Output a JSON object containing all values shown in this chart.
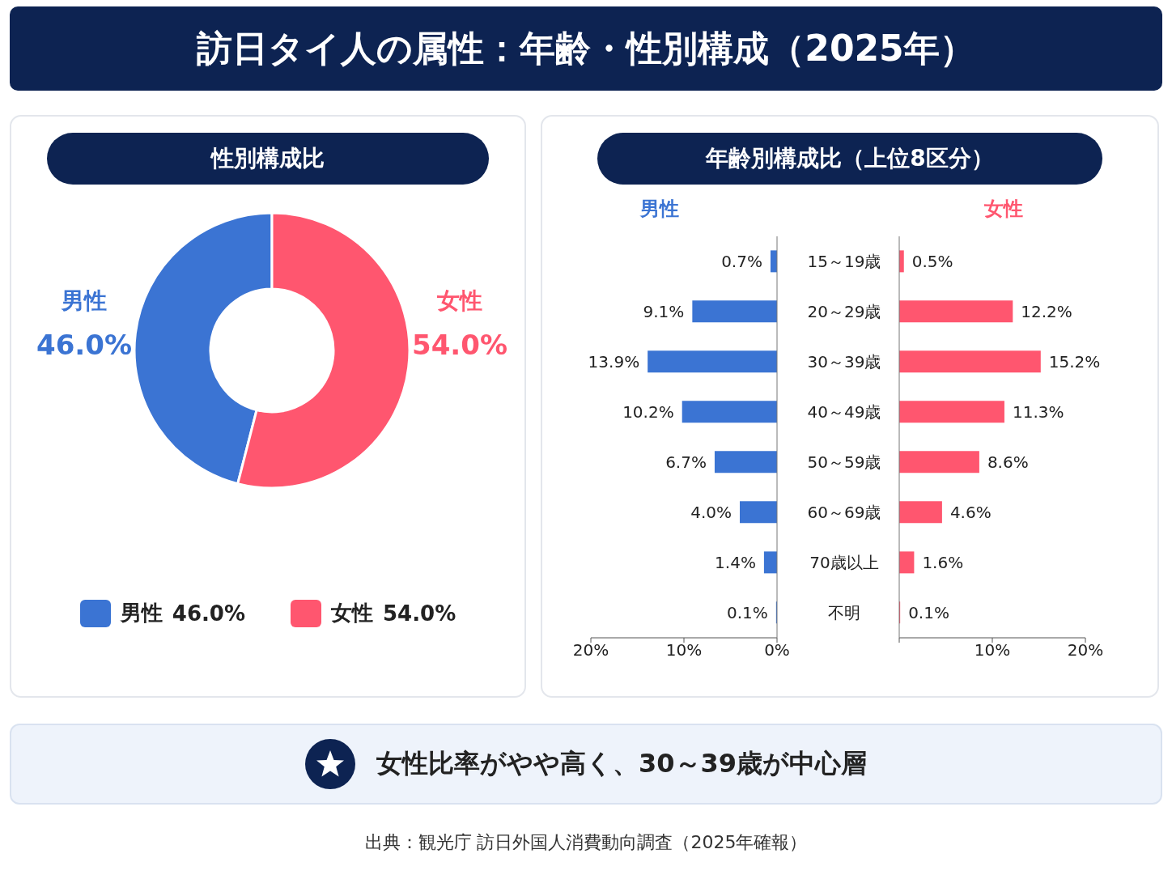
{
  "chart_data": [
    {
      "type": "donut",
      "title": "訪日タイ人の属性：年齢・性別構成（2025年）",
      "subtitle": "性別構成比",
      "categories": [
        "男性",
        "女性"
      ],
      "values": [
        46.0,
        54.0
      ],
      "value_labels": [
        "46.0%",
        "54.0%"
      ],
      "colors": [
        "#3b74d3",
        "#ff566f"
      ],
      "legend": "bottom"
    },
    {
      "type": "bar",
      "orientation": "horizontal",
      "title": "年齢別構成比（上位8区分）",
      "categories": [
        "15～19歳",
        "20～29歳",
        "30～39歳",
        "40～49歳",
        "50～59歳",
        "60～69歳",
        "70歳以上",
        "不明"
      ],
      "series": [
        {
          "name": "男性",
          "color": "#3b74d3",
          "values": [
            0.7,
            9.1,
            13.9,
            10.2,
            6.7,
            4.0,
            1.4,
            0.1
          ],
          "value_labels": [
            "0.7%",
            "9.1%",
            "13.9%",
            "10.2%",
            "6.7%",
            "4.0%",
            "1.4%",
            "0.1%"
          ]
        }
      ],
      "xlim": [
        20,
        0
      ],
      "xticks": [
        {
          "value": 20,
          "label": "20%"
        },
        {
          "value": 10,
          "label": "10%"
        },
        {
          "value": 0,
          "label": "0%"
        }
      ],
      "legend": "top",
      "annotations": [
        "女性比率がやや高く、30～39歳が中心層",
        "出典：観光庁 訪日外国人消費動向調査（2025年確報）"
      ]
    },
    {
      "type": "bar",
      "orientation": "horizontal",
      "categories": [
        null,
        null,
        null,
        null,
        null,
        null,
        null,
        null
      ],
      "series": [
        {
          "name": "女性",
          "color": "#ff566f",
          "values": [
            0.5,
            12.2,
            15.2,
            11.3,
            8.6,
            4.6,
            1.6,
            0.1
          ],
          "value_labels": [
            "0.5%",
            "12.2%",
            "15.2%",
            "11.3%",
            "8.6%",
            "4.6%",
            "1.6%",
            "0.1%"
          ]
        }
      ],
      "xlim": [
        0,
        20
      ],
      "xticks": [
        {
          "value": 0,
          "label": null
        },
        {
          "value": 10,
          "label": "10%"
        },
        {
          "value": 20,
          "label": "20%"
        }
      ],
      "tick_labels": "x",
      "legend": "top"
    }
  ]
}
